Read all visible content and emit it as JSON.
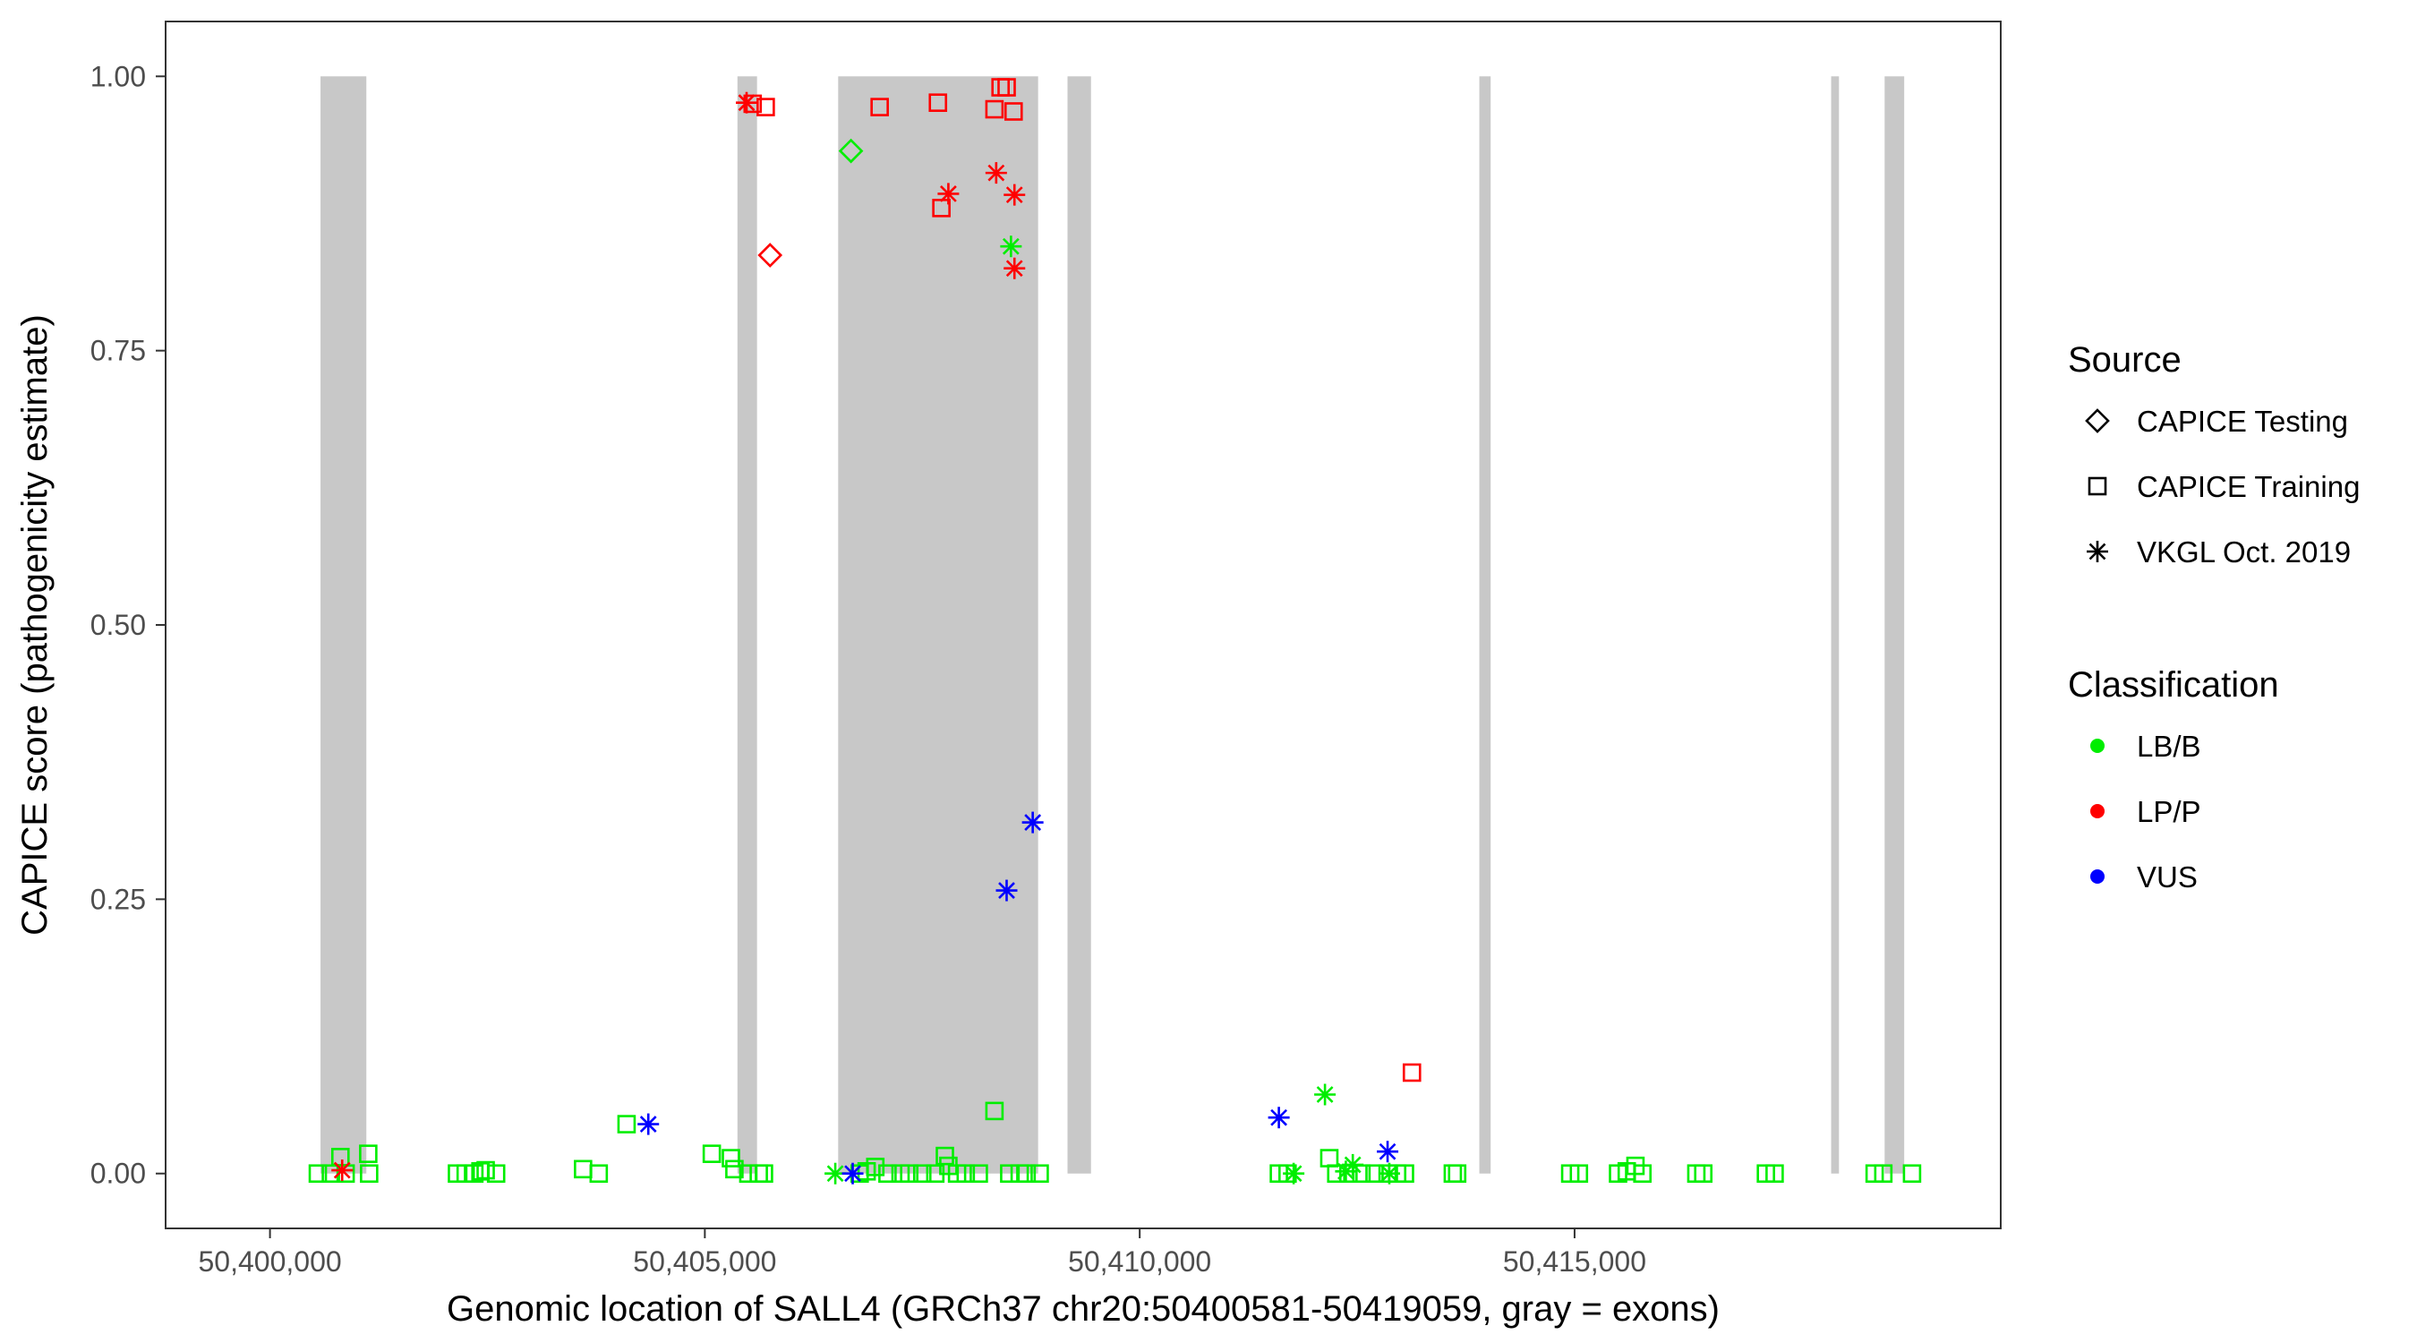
{
  "chart_data": {
    "type": "scatter",
    "title": "",
    "xlabel": "Genomic location of SALL4 (GRCh37 chr20:50400581-50419059, gray = exons)",
    "ylabel": "CAPICE score (pathogenicity estimate)",
    "xlim": [
      50398800,
      50419900
    ],
    "ylim": [
      -0.05,
      1.05
    ],
    "x_ticks": [
      50400000,
      50405000,
      50410000,
      50415000
    ],
    "x_tick_labels": [
      "50,400,000",
      "50,405,000",
      "50,410,000",
      "50,415,000"
    ],
    "y_ticks": [
      0,
      0.25,
      0.5,
      0.75,
      1.0
    ],
    "y_tick_labels": [
      "0.00",
      "0.25",
      "0.50",
      "0.75",
      "1.00"
    ],
    "grid": false,
    "exon_color": "#c8c8c8",
    "exons": [
      {
        "start": 50400581,
        "end": 50401108
      },
      {
        "start": 50405375,
        "end": 50405600
      },
      {
        "start": 50406533,
        "end": 50408832
      },
      {
        "start": 50409170,
        "end": 50409440
      },
      {
        "start": 50413905,
        "end": 50414035
      },
      {
        "start": 50417950,
        "end": 50418040
      },
      {
        "start": 50418565,
        "end": 50418790
      }
    ],
    "legend": {
      "position": "right",
      "source_title": "Source",
      "source_entries": [
        {
          "label": "CAPICE Testing",
          "shape": "diamond"
        },
        {
          "label": "CAPICE Training",
          "shape": "square"
        },
        {
          "label": "VKGL Oct. 2019",
          "shape": "asterisk"
        }
      ],
      "class_title": "Classification",
      "class_entries": [
        {
          "label": "LB/B",
          "color": "#00ee00"
        },
        {
          "label": "LP/P",
          "color": "#ff0000"
        },
        {
          "label": "VUS",
          "color": "#0000ff"
        }
      ]
    },
    "colors": {
      "LB/B": "#00ee00",
      "LP/P": "#ff0000",
      "VUS": "#0000ff"
    },
    "series": [
      {
        "source": "CAPICE Training",
        "classification": "LB/B",
        "points": [
          [
            50400550,
            0.0
          ],
          [
            50400700,
            0.0
          ],
          [
            50400810,
            0.015
          ],
          [
            50400870,
            0.0
          ],
          [
            50401130,
            0.018
          ],
          [
            50401140,
            0.0
          ],
          [
            50402150,
            0.0
          ],
          [
            50402250,
            0.0
          ],
          [
            50402350,
            0.0
          ],
          [
            50402420,
            0.002
          ],
          [
            50402480,
            0.003
          ],
          [
            50402600,
            0.0
          ],
          [
            50403600,
            0.004
          ],
          [
            50403780,
            0.0
          ],
          [
            50404100,
            0.045
          ],
          [
            50405080,
            0.018
          ],
          [
            50405300,
            0.014
          ],
          [
            50405340,
            0.004
          ],
          [
            50405500,
            0.0
          ],
          [
            50405620,
            0.0
          ],
          [
            50405680,
            0.0
          ],
          [
            50406780,
            0.0
          ],
          [
            50406860,
            0.002
          ],
          [
            50406960,
            0.006
          ],
          [
            50407100,
            0.0
          ],
          [
            50407250,
            0.0
          ],
          [
            50407350,
            0.0
          ],
          [
            50407500,
            0.0
          ],
          [
            50407650,
            0.0
          ],
          [
            50407760,
            0.016
          ],
          [
            50407800,
            0.007
          ],
          [
            50407900,
            0.0
          ],
          [
            50408000,
            0.0
          ],
          [
            50408150,
            0.0
          ],
          [
            50408330,
            0.057
          ],
          [
            50408500,
            0.0
          ],
          [
            50408620,
            0.0
          ],
          [
            50408700,
            0.0
          ],
          [
            50408850,
            0.0
          ],
          [
            50411600,
            0.0
          ],
          [
            50411700,
            0.0
          ],
          [
            50412180,
            0.014
          ],
          [
            50412260,
            0.0
          ],
          [
            50412400,
            0.0
          ],
          [
            50412550,
            0.0
          ],
          [
            50412700,
            0.0
          ],
          [
            50412850,
            0.0
          ],
          [
            50412960,
            0.0
          ],
          [
            50413050,
            0.0
          ],
          [
            50413600,
            0.0
          ],
          [
            50413650,
            0.0
          ],
          [
            50414950,
            0.0
          ],
          [
            50415050,
            0.0
          ],
          [
            50415500,
            0.0
          ],
          [
            50415600,
            0.002
          ],
          [
            50415700,
            0.007
          ],
          [
            50415780,
            0.0
          ],
          [
            50416400,
            0.0
          ],
          [
            50416480,
            0.0
          ],
          [
            50417200,
            0.0
          ],
          [
            50417300,
            0.0
          ],
          [
            50418450,
            0.0
          ],
          [
            50418550,
            0.0
          ],
          [
            50418880,
            0.0
          ]
        ]
      },
      {
        "source": "CAPICE Training",
        "classification": "LP/P",
        "points": [
          [
            50405550,
            0.975
          ],
          [
            50405700,
            0.972
          ],
          [
            50407010,
            0.972
          ],
          [
            50407680,
            0.976
          ],
          [
            50407720,
            0.88
          ],
          [
            50408330,
            0.97
          ],
          [
            50408400,
            0.99
          ],
          [
            50408470,
            0.99
          ],
          [
            50408550,
            0.968
          ],
          [
            50413130,
            0.092
          ]
        ]
      },
      {
        "source": "CAPICE Testing",
        "classification": "LB/B",
        "points": [
          [
            50406680,
            0.932
          ]
        ]
      },
      {
        "source": "CAPICE Testing",
        "classification": "LP/P",
        "points": [
          [
            50405750,
            0.837
          ]
        ]
      },
      {
        "source": "VKGL Oct. 2019",
        "classification": "LB/B",
        "points": [
          [
            50406500,
            0.0
          ],
          [
            50408520,
            0.845
          ],
          [
            50411770,
            0.0
          ],
          [
            50412130,
            0.072
          ],
          [
            50412370,
            0.002
          ],
          [
            50412450,
            0.008
          ],
          [
            50412870,
            0.0
          ]
        ]
      },
      {
        "source": "VKGL Oct. 2019",
        "classification": "LP/P",
        "points": [
          [
            50400830,
            0.003
          ],
          [
            50405480,
            0.976
          ],
          [
            50407800,
            0.893
          ],
          [
            50408350,
            0.912
          ],
          [
            50408560,
            0.892
          ],
          [
            50408560,
            0.825
          ]
        ]
      },
      {
        "source": "VKGL Oct. 2019",
        "classification": "VUS",
        "points": [
          [
            50404350,
            0.045
          ],
          [
            50406700,
            0.0
          ],
          [
            50408770,
            0.32
          ],
          [
            50408470,
            0.258
          ],
          [
            50411600,
            0.051
          ],
          [
            50412850,
            0.02
          ]
        ]
      }
    ]
  }
}
